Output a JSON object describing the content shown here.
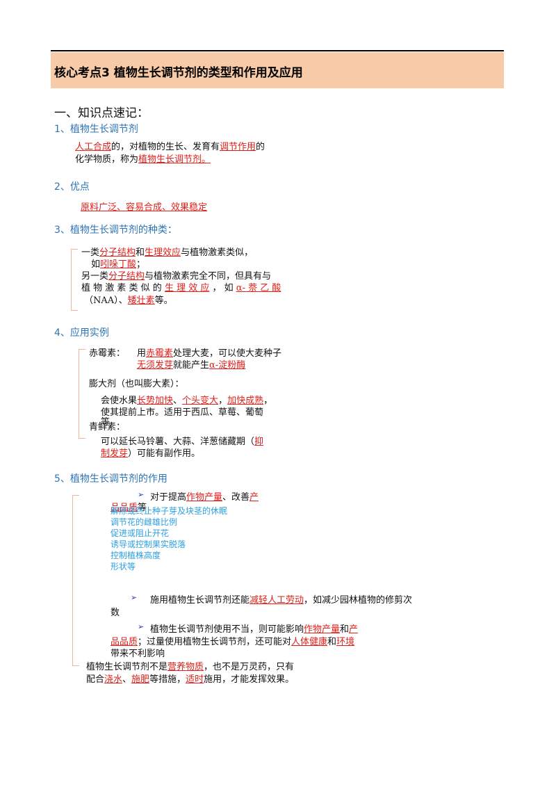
{
  "header": {
    "title": "核心考点3  植物生长调节剂的类型和作用及应用"
  },
  "section_title": "一、知识点速记：",
  "s1": {
    "heading": "1、植物生长调节剂",
    "l1_a": "人工合成",
    "l1_b": "的，对植物的生长、发育有",
    "l1_c": "调节作用",
    "l1_d": "的",
    "l2_a": "化学物质，称为",
    "l2_b": "植物生长调节剂。"
  },
  "s2": {
    "heading": "2、优点",
    "text": "原料广泛、容易合成、效果稳定"
  },
  "s3": {
    "heading": "3、植物生长调节剂的种类：",
    "l1_a": "一类",
    "l1_b": "分子结构",
    "l1_c": "和",
    "l1_d": "生理效应",
    "l1_e": "与植物激素类似，",
    "l2_a": "如",
    "l2_b": "吲哚丁酸",
    "l2_c": "；",
    "l3_a": "另一类",
    "l3_b": "分子结构",
    "l3_c": "与植物激素完全不同，但具有与",
    "l4_a": "植 物 激 素 类 似 的",
    "l4_b": "生 理 效 应",
    "l4_c": "， 如",
    "l4_d": "α- 萘 乙 酸",
    "l5_a": "（NAA）、",
    "l5_b": "矮壮素",
    "l5_c": "等。"
  },
  "s4": {
    "heading": "4、应用实例",
    "gib_label": "赤霉素：",
    "gib_l1_a": "用",
    "gib_l1_b": "赤霉素",
    "gib_l1_c": "处理大麦，可以使大麦种子",
    "gib_l2_a": "无须发芽",
    "gib_l2_b": "就能产生",
    "gib_l2_c": "α-淀粉酶",
    "swell_label": "膨大剂（也叫膨大素）：",
    "swell_l1_a": "会使水果",
    "swell_l1_b": "长势加快",
    "swell_l1_c": "、",
    "swell_l1_d": "个头变大",
    "swell_l1_e": "，",
    "swell_l1_f": "加快成熟",
    "swell_l1_g": "，",
    "swell_l2": "使其提前上市。适用于西瓜、草莓、葡萄",
    "swell_l3": "等",
    "fresh_label": "青鲜素：",
    "fresh_l1_a": "可以延长马铃薯、大蒜、洋葱储藏期（",
    "fresh_l1_b": "抑",
    "fresh_l2_a": "制发芽",
    "fresh_l2_b": "）可能有副作用。"
  },
  "s5": {
    "heading": "5、植物生长调节剂的作用",
    "b1_arrow": "➢",
    "b1_a": "对于提高",
    "b1_b": "作物产量",
    "b1_c": "、改善",
    "b1_d": "产",
    "b1_e": "品品质",
    "b1_f": "等",
    "list": [
      "解除或终止种子芽及块茎的休眠",
      "调节花的雌雄比例",
      "促进或阻止开花",
      "诱导或控制果实脱落",
      "控制植株高度",
      "形状等"
    ],
    "b2_arrow": "➢",
    "b2_a": "施用植物生长调节剂还能",
    "b2_b": "减轻人工劳动",
    "b2_c": "，如减少园林植物的修剪次",
    "b2_d": "数",
    "b3_arrow": "➢",
    "b3_a": "植物生长调节剂使用不当，则可能影响",
    "b3_b": "作物产量",
    "b3_c": "和",
    "b3_d": "产",
    "b3_e": "品品质",
    "b3_f": "；过量使用植物生长调节剂，还可能对",
    "b3_g": "人体健康",
    "b3_h": "和",
    "b3_i": "环境",
    "b3_j": "带来不利影响",
    "f1_a": "植物生长调节剂不是",
    "f1_b": "营养物质",
    "f1_c": "，也不是万灵药，只有",
    "f2_a": "配合",
    "f2_b": "浇水",
    "f2_c": "、",
    "f2_d": "施肥",
    "f2_e": "等措施，",
    "f2_f": "适时",
    "f2_g": "施用，才能发挥效果。"
  }
}
